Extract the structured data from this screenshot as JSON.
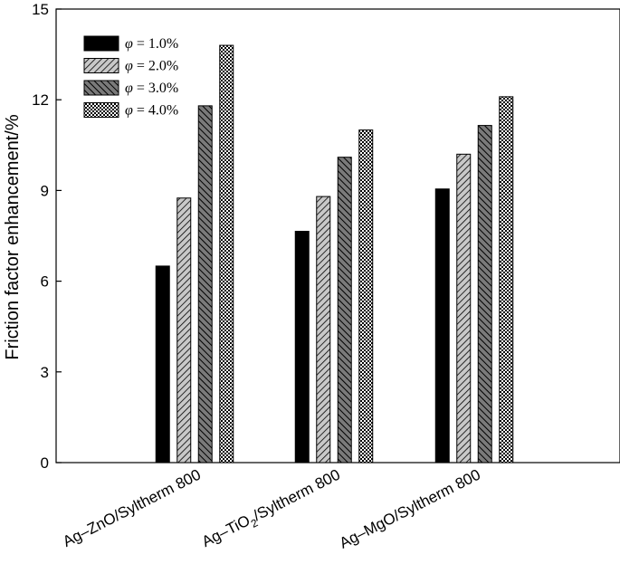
{
  "chart_data": {
    "type": "bar",
    "ylabel": "Friction factor enhancement/%",
    "ylim": [
      0,
      15
    ],
    "yticks": [
      "0",
      "3",
      "6",
      "9",
      "12",
      "15"
    ],
    "grid": false,
    "legend_position": "top-left",
    "categories": [
      {
        "base": "Ag–ZnO/Syltherm 800",
        "sub": "",
        "after": ""
      },
      {
        "base": "Ag–TiO",
        "sub": "2",
        "after": "/Syltherm 800"
      },
      {
        "base": "Ag–MgO/Syltherm 800",
        "sub": "",
        "after": ""
      }
    ],
    "series": [
      {
        "name": "= 1.0%",
        "symbol": "φ",
        "pattern": "solid",
        "values": [
          6.5,
          7.65,
          9.05
        ]
      },
      {
        "name": "= 2.0%",
        "symbol": "φ",
        "pattern": "diag-light",
        "values": [
          8.75,
          8.8,
          10.2
        ]
      },
      {
        "name": "= 3.0%",
        "symbol": "φ",
        "pattern": "diag-dark",
        "values": [
          11.8,
          10.1,
          11.15
        ]
      },
      {
        "name": "= 4.0%",
        "symbol": "φ",
        "pattern": "checker",
        "values": [
          13.8,
          11.0,
          12.1
        ]
      }
    ]
  }
}
